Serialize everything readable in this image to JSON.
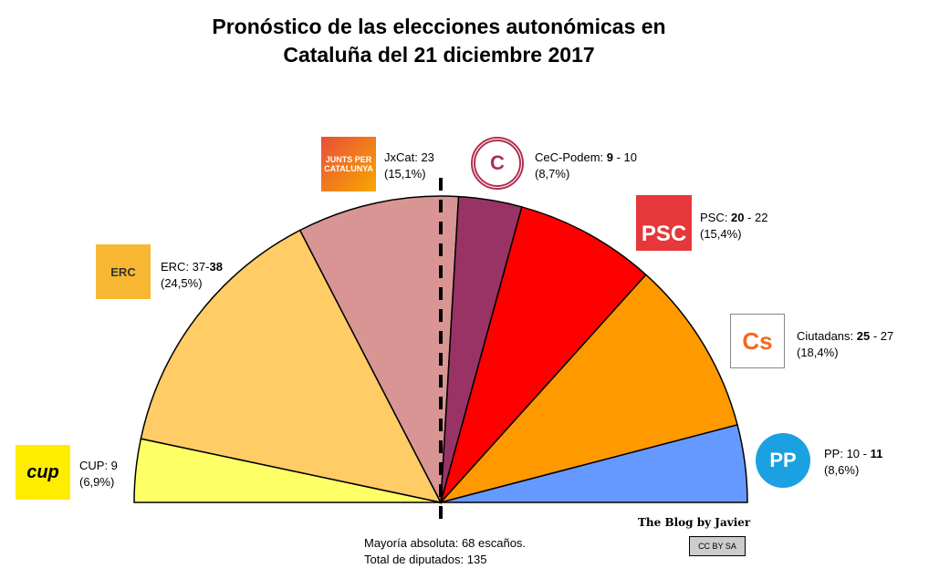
{
  "chart_data": {
    "type": "pie",
    "subtype": "semicircle",
    "title_line1": "Pronóstico de las elecciones autonómicas en",
    "title_line2": "Cataluña del 21 diciembre 2017",
    "total": 135,
    "majority_line": true,
    "slices": [
      {
        "name": "CUP",
        "value": 9,
        "color": "#ffff66",
        "label_pre": "CUP:  ",
        "low": "9",
        "high": "",
        "bold": "",
        "pct": "(6,9%)"
      },
      {
        "name": "ERC",
        "value": 38,
        "color": "#ffcc66",
        "label_pre": "ERC:  37-",
        "low": "",
        "high": "",
        "bold": "38",
        "pct": "(24,5%)"
      },
      {
        "name": "JxCat",
        "value": 23,
        "color": "#d99594",
        "label_pre": "JxCat:  23",
        "low": "",
        "high": "",
        "bold": "",
        "pct": "(15,1%)"
      },
      {
        "name": "CeC-Podem",
        "value": 9,
        "color": "#993366",
        "label_pre": "CeC-Podem: ",
        "low": "",
        "high": " - 10",
        "bold": "9",
        "pct": "(8,7%)"
      },
      {
        "name": "PSC",
        "value": 20,
        "color": "#ff0000",
        "label_pre": "PSC:  ",
        "low": "",
        "high": " - 22",
        "bold": "20",
        "pct": "(15,4%)"
      },
      {
        "name": "Ciutadans",
        "value": 25,
        "color": "#ff9900",
        "label_pre": "Ciutadans: ",
        "low": "",
        "high": " - 27",
        "bold": "25",
        "pct": "(18,4%)"
      },
      {
        "name": "PP",
        "value": 11,
        "color": "#6699ff",
        "label_pre": "PP:  10 - ",
        "low": "",
        "high": "",
        "bold": "11",
        "pct": "(8,6%)"
      }
    ]
  },
  "logos": {
    "jxcat": "JUNTS PER CATALUNYA",
    "erc": "ERC",
    "psc": "PSC",
    "cs": "Cs",
    "pp": "PP",
    "cup": "cup"
  },
  "notes": {
    "majority": "Mayoría absoluta: 68 escaños.",
    "total": "Total de diputados: 135"
  },
  "credit": {
    "blog": "The Blog by Javier",
    "license": "CC BY SA"
  }
}
